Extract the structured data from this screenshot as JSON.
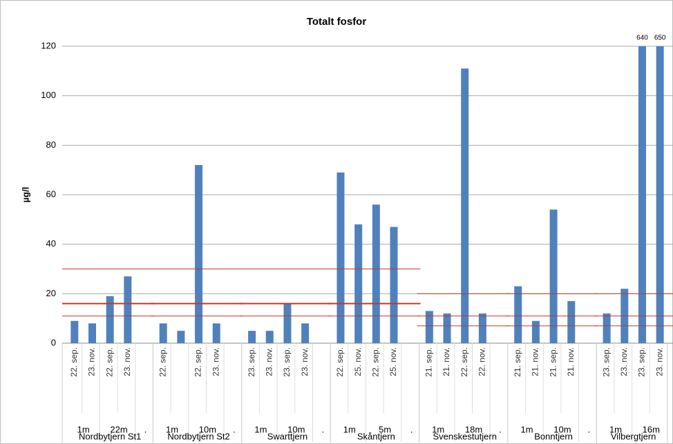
{
  "chart_data": {
    "type": "bar",
    "title": "Totalt fosfor",
    "y_label": "µg/l",
    "ylim": [
      0,
      120
    ],
    "yticks": [
      0,
      20,
      40,
      60,
      80,
      100,
      120
    ],
    "grid": true,
    "color": "#4f81bd",
    "limit_color": "#c0392b",
    "groups": [
      {
        "name": "Nordbytjern St1",
        "limits": [
          30,
          16,
          11
        ],
        "depths": [
          {
            "name": "1m",
            "dates": [
              "22. sep.",
              "23. nov."
            ],
            "values": [
              9,
              8
            ],
            "value_labels": [
              null,
              null
            ]
          },
          {
            "name": "22m",
            "dates": [
              "22. sep.",
              "23. nov."
            ],
            "values": [
              19,
              27
            ],
            "value_labels": [
              null,
              null
            ]
          },
          {
            "name": ".",
            "dates": [
              null
            ],
            "values": [
              null
            ],
            "value_labels": [
              null
            ]
          }
        ]
      },
      {
        "name": "Nordbytjern St2",
        "limits": [
          30,
          16,
          11
        ],
        "depths": [
          {
            "name": "1m",
            "dates": [
              "22. sep.",
              null
            ],
            "values": [
              8,
              5
            ],
            "value_labels": [
              null,
              null
            ]
          },
          {
            "name": "10m",
            "dates": [
              "22. sep.",
              "23. nov."
            ],
            "values": [
              72,
              8
            ],
            "value_labels": [
              null,
              null
            ]
          },
          {
            "name": ".",
            "dates": [
              null
            ],
            "values": [
              null
            ],
            "value_labels": [
              null
            ]
          }
        ]
      },
      {
        "name": "Swarttjern",
        "limits": [
          30,
          16,
          11
        ],
        "depths": [
          {
            "name": "1m",
            "dates": [
              "23. sep.",
              "23. nov."
            ],
            "values": [
              5,
              5
            ],
            "value_labels": [
              null,
              null
            ]
          },
          {
            "name": "10m",
            "dates": [
              "23. sep.",
              "23. nov."
            ],
            "values": [
              16,
              8
            ],
            "value_labels": [
              null,
              null
            ]
          },
          {
            "name": ".",
            "dates": [
              null
            ],
            "values": [
              null
            ],
            "value_labels": [
              null
            ]
          }
        ]
      },
      {
        "name": "Skåntjern",
        "limits": [
          30,
          16,
          11
        ],
        "depths": [
          {
            "name": "1m",
            "dates": [
              "22. sep.",
              "25. nov."
            ],
            "values": [
              69,
              48
            ],
            "value_labels": [
              null,
              null
            ]
          },
          {
            "name": "5m",
            "dates": [
              "22. sep.",
              "25. nov."
            ],
            "values": [
              56,
              47
            ],
            "value_labels": [
              null,
              null
            ]
          },
          {
            "name": ".",
            "dates": [
              null
            ],
            "values": [
              null
            ],
            "value_labels": [
              null
            ]
          }
        ]
      },
      {
        "name": "Svenskestutjern",
        "limits": [
          20,
          11,
          7
        ],
        "depths": [
          {
            "name": "1m",
            "dates": [
              "21. sep.",
              "21. nov."
            ],
            "values": [
              13,
              12
            ],
            "value_labels": [
              null,
              null
            ]
          },
          {
            "name": "18m",
            "dates": [
              "22. sep.",
              "22. nov."
            ],
            "values": [
              111,
              12
            ],
            "value_labels": [
              null,
              null
            ]
          },
          {
            "name": ".",
            "dates": [
              null
            ],
            "values": [
              null
            ],
            "value_labels": [
              null
            ]
          }
        ]
      },
      {
        "name": "Bonntjern",
        "limits": [
          20,
          11,
          7
        ],
        "depths": [
          {
            "name": "1m",
            "dates": [
              "21. sep.",
              "21. nov."
            ],
            "values": [
              23,
              9
            ],
            "value_labels": [
              null,
              null
            ]
          },
          {
            "name": "10m",
            "dates": [
              "21. sep.",
              "21. nov."
            ],
            "values": [
              54,
              17
            ],
            "value_labels": [
              null,
              null
            ]
          },
          {
            "name": ".",
            "dates": [
              null
            ],
            "values": [
              null
            ],
            "value_labels": [
              null
            ]
          }
        ]
      },
      {
        "name": "Vilbergtjern",
        "limits": [
          20,
          11,
          7
        ],
        "depths": [
          {
            "name": "1m",
            "dates": [
              "23. sep.",
              "23. nov."
            ],
            "values": [
              12,
              22
            ],
            "value_labels": [
              null,
              null
            ]
          },
          {
            "name": "16m",
            "dates": [
              "23. sep.",
              "23. nov."
            ],
            "values": [
              640,
              650
            ],
            "value_labels": [
              "640",
              "650"
            ]
          }
        ]
      }
    ]
  }
}
